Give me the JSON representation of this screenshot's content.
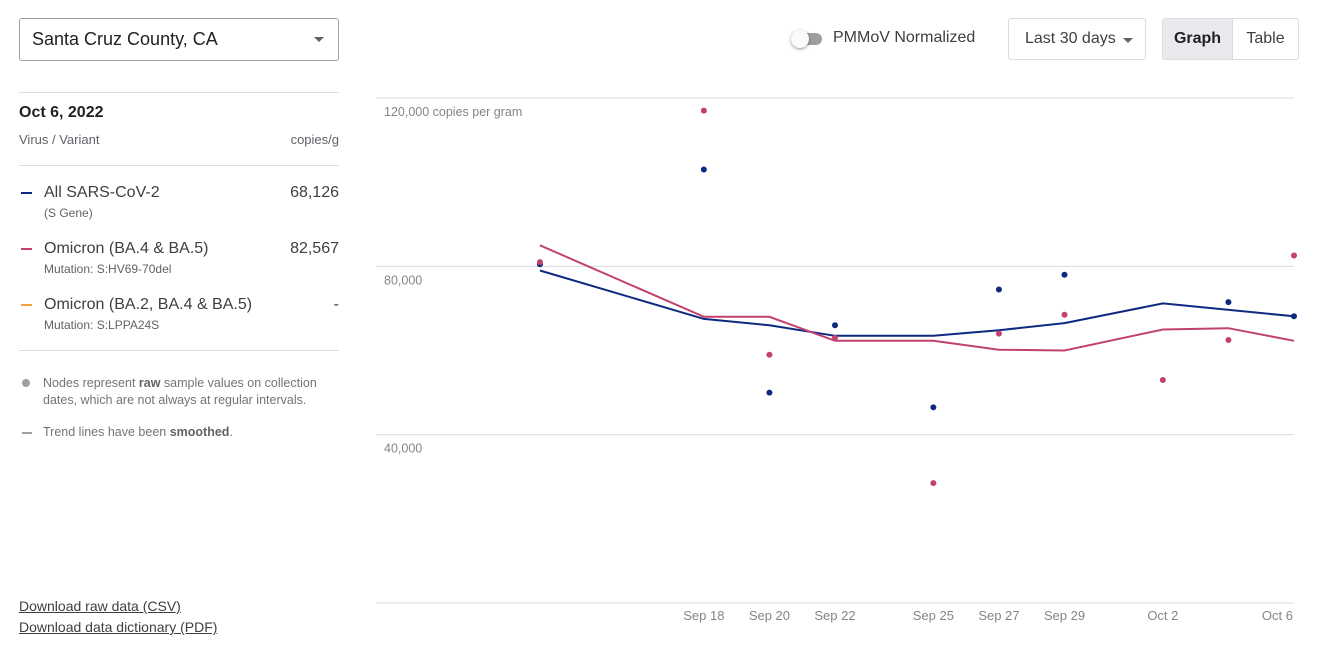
{
  "location": {
    "value": "Santa Cruz County, CA"
  },
  "detail": {
    "date": "Oct 6, 2022",
    "col_left": "Virus / Variant",
    "col_right": "copies/g",
    "rows": [
      {
        "name": "All SARS-CoV-2",
        "sub": "(S Gene)",
        "value": "68,126",
        "color": "#0d2a80"
      },
      {
        "name": "Omicron (BA.4 & BA.5)",
        "sub": "Mutation: S:HV69-70del",
        "value": "82,567",
        "color": "#c2416e"
      },
      {
        "name": "Omicron (BA.2, BA.4 & BA.5)",
        "sub": "Mutation: S:LPPA24S",
        "value": "-",
        "color": "#f0a23b"
      }
    ]
  },
  "notes": {
    "nodes_pre": "Nodes represent ",
    "nodes_bold": "raw",
    "nodes_post": " sample values on collection dates, which are not always at regular intervals.",
    "trend_pre": "Trend lines have been ",
    "trend_bold": "smoothed",
    "trend_post": "."
  },
  "links": {
    "csv": "Download raw data (CSV)",
    "pdf": "Download data dictionary (PDF)"
  },
  "controls": {
    "toggle_label": "PMMoV Normalized",
    "toggle_on": false,
    "range": "Last 30 days",
    "view_graph": "Graph",
    "view_table": "Table"
  },
  "chart_data": {
    "type": "line",
    "y_gridlines": [
      {
        "value": 120000,
        "label": "120,000 copies per gram"
      },
      {
        "value": 80000,
        "label": "80,000"
      },
      {
        "value": 40000,
        "label": "40,000"
      }
    ],
    "ylim": [
      0,
      120000
    ],
    "xlim": [
      "2022-09-08",
      "2022-10-06"
    ],
    "x_ticks": [
      {
        "date": "2022-09-18",
        "label": "Sep 18"
      },
      {
        "date": "2022-09-20",
        "label": "Sep 20"
      },
      {
        "date": "2022-09-22",
        "label": "Sep 22"
      },
      {
        "date": "2022-09-25",
        "label": "Sep 25"
      },
      {
        "date": "2022-09-27",
        "label": "Sep 27"
      },
      {
        "date": "2022-09-29",
        "label": "Sep 29"
      },
      {
        "date": "2022-10-02",
        "label": "Oct 2"
      },
      {
        "date": "2022-10-06",
        "label": "Oct 6"
      }
    ],
    "series": [
      {
        "name": "All SARS-CoV-2",
        "color": "#0d2a80",
        "points": [
          {
            "x": "2022-09-13",
            "y": 80500
          },
          {
            "x": "2022-09-18",
            "y": 103000
          },
          {
            "x": "2022-09-20",
            "y": 50000
          },
          {
            "x": "2022-09-22",
            "y": 66000
          },
          {
            "x": "2022-09-25",
            "y": 46500
          },
          {
            "x": "2022-09-27",
            "y": 74500
          },
          {
            "x": "2022-09-29",
            "y": 78000
          },
          {
            "x": "2022-10-04",
            "y": 71500
          },
          {
            "x": "2022-10-06",
            "y": 68126
          }
        ],
        "trend": [
          {
            "x": "2022-09-13",
            "y": 79000
          },
          {
            "x": "2022-09-18",
            "y": 67500
          },
          {
            "x": "2022-09-20",
            "y": 66000
          },
          {
            "x": "2022-09-22",
            "y": 63500
          },
          {
            "x": "2022-09-25",
            "y": 63500
          },
          {
            "x": "2022-09-27",
            "y": 64800
          },
          {
            "x": "2022-09-29",
            "y": 66500
          },
          {
            "x": "2022-10-02",
            "y": 71200
          },
          {
            "x": "2022-10-06",
            "y": 68126
          }
        ]
      },
      {
        "name": "Omicron (BA.4 & BA.5)",
        "color": "#c2416e",
        "points": [
          {
            "x": "2022-09-13",
            "y": 81000
          },
          {
            "x": "2022-09-18",
            "y": 117000
          },
          {
            "x": "2022-09-20",
            "y": 59000
          },
          {
            "x": "2022-09-22",
            "y": 63000
          },
          {
            "x": "2022-09-25",
            "y": 28500
          },
          {
            "x": "2022-09-27",
            "y": 64000
          },
          {
            "x": "2022-09-29",
            "y": 68500
          },
          {
            "x": "2022-10-02",
            "y": 53000
          },
          {
            "x": "2022-10-04",
            "y": 62500
          },
          {
            "x": "2022-10-06",
            "y": 82567
          }
        ],
        "trend": [
          {
            "x": "2022-09-13",
            "y": 85000
          },
          {
            "x": "2022-09-18",
            "y": 68000
          },
          {
            "x": "2022-09-20",
            "y": 68000
          },
          {
            "x": "2022-09-22",
            "y": 62300
          },
          {
            "x": "2022-09-25",
            "y": 62300
          },
          {
            "x": "2022-09-27",
            "y": 60200
          },
          {
            "x": "2022-09-29",
            "y": 60000
          },
          {
            "x": "2022-10-02",
            "y": 65000
          },
          {
            "x": "2022-10-04",
            "y": 65300
          },
          {
            "x": "2022-10-06",
            "y": 62300
          }
        ]
      }
    ]
  }
}
